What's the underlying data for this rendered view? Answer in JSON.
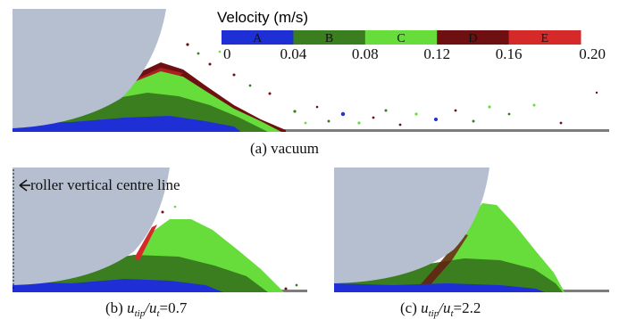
{
  "legend": {
    "title": "Velocity (m/s)",
    "bands": [
      {
        "label": "A",
        "color": "#1f2fd6"
      },
      {
        "label": "B",
        "color": "#3a7e1f"
      },
      {
        "label": "C",
        "color": "#66dd3b"
      },
      {
        "label": "D",
        "color": "#6e0f12"
      },
      {
        "label": "E",
        "color": "#d62a2a"
      }
    ],
    "ticks": [
      "0",
      "0.04",
      "0.08",
      "0.12",
      "0.16",
      "0.20"
    ]
  },
  "panels": {
    "a": {
      "caption": "(a)  vacuum"
    },
    "b": {
      "caption_prefix": "(b)  ",
      "u1": "u",
      "sub1": "tip",
      "slash": "/",
      "u2": "u",
      "sub2": "t",
      "value": "=0.7"
    },
    "c": {
      "caption_prefix": "(c)  ",
      "u1": "u",
      "sub1": "tip",
      "slash": "/",
      "u2": "u",
      "sub2": "t",
      "value": "=2.2"
    }
  },
  "annotation": {
    "label": "roller vertical centre line"
  },
  "colors": {
    "roller": "#b6bfd0",
    "ground": "#7d7d7d",
    "blue": "#1f2fd6",
    "dark_green": "#3a7e1f",
    "mid_green": "#2f6d1a",
    "light_green": "#66dd3b",
    "dark_red": "#6e0f12",
    "red": "#d62a2a"
  }
}
